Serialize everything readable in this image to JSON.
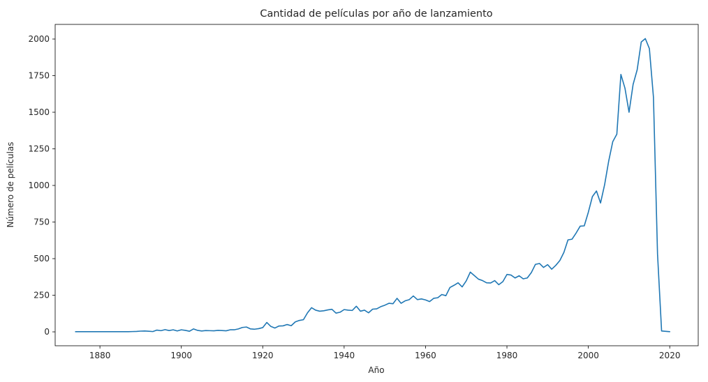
{
  "chart_data": {
    "type": "line",
    "title": "Cantidad de películas por año de lanzamiento",
    "xlabel": "Año",
    "ylabel": "Número de películas",
    "xlim": [
      1869,
      2027
    ],
    "ylim": [
      -95,
      2100
    ],
    "x_ticks": [
      1880,
      1900,
      1920,
      1940,
      1960,
      1980,
      2000,
      2020
    ],
    "y_ticks": [
      0,
      250,
      500,
      750,
      1000,
      1250,
      1500,
      1750,
      2000
    ],
    "grid": false,
    "series": [
      {
        "color": "#1f77b4",
        "points": [
          [
            1874,
            1
          ],
          [
            1878,
            1
          ],
          [
            1883,
            1
          ],
          [
            1887,
            1
          ],
          [
            1888,
            2
          ],
          [
            1889,
            3
          ],
          [
            1890,
            5
          ],
          [
            1891,
            6
          ],
          [
            1892,
            4
          ],
          [
            1893,
            2
          ],
          [
            1894,
            12
          ],
          [
            1895,
            8
          ],
          [
            1896,
            15
          ],
          [
            1897,
            9
          ],
          [
            1898,
            14
          ],
          [
            1899,
            6
          ],
          [
            1900,
            14
          ],
          [
            1901,
            10
          ],
          [
            1902,
            4
          ],
          [
            1903,
            20
          ],
          [
            1904,
            10
          ],
          [
            1905,
            6
          ],
          [
            1906,
            9
          ],
          [
            1907,
            8
          ],
          [
            1908,
            7
          ],
          [
            1909,
            10
          ],
          [
            1910,
            9
          ],
          [
            1911,
            7
          ],
          [
            1912,
            14
          ],
          [
            1913,
            14
          ],
          [
            1914,
            20
          ],
          [
            1915,
            30
          ],
          [
            1916,
            33
          ],
          [
            1917,
            20
          ],
          [
            1918,
            18
          ],
          [
            1919,
            22
          ],
          [
            1920,
            29
          ],
          [
            1921,
            64
          ],
          [
            1922,
            37
          ],
          [
            1923,
            26
          ],
          [
            1924,
            40
          ],
          [
            1925,
            41
          ],
          [
            1926,
            50
          ],
          [
            1927,
            42
          ],
          [
            1928,
            68
          ],
          [
            1929,
            78
          ],
          [
            1930,
            83
          ],
          [
            1931,
            130
          ],
          [
            1932,
            165
          ],
          [
            1933,
            148
          ],
          [
            1934,
            141
          ],
          [
            1935,
            144
          ],
          [
            1936,
            150
          ],
          [
            1937,
            154
          ],
          [
            1938,
            128
          ],
          [
            1939,
            134
          ],
          [
            1940,
            152
          ],
          [
            1941,
            148
          ],
          [
            1942,
            146
          ],
          [
            1943,
            175
          ],
          [
            1944,
            141
          ],
          [
            1945,
            148
          ],
          [
            1946,
            130
          ],
          [
            1947,
            155
          ],
          [
            1948,
            157
          ],
          [
            1949,
            172
          ],
          [
            1950,
            182
          ],
          [
            1951,
            195
          ],
          [
            1952,
            192
          ],
          [
            1953,
            229
          ],
          [
            1954,
            195
          ],
          [
            1955,
            212
          ],
          [
            1956,
            220
          ],
          [
            1957,
            245
          ],
          [
            1958,
            220
          ],
          [
            1959,
            225
          ],
          [
            1960,
            218
          ],
          [
            1961,
            207
          ],
          [
            1962,
            229
          ],
          [
            1963,
            233
          ],
          [
            1964,
            255
          ],
          [
            1965,
            247
          ],
          [
            1966,
            303
          ],
          [
            1967,
            318
          ],
          [
            1968,
            335
          ],
          [
            1969,
            307
          ],
          [
            1970,
            348
          ],
          [
            1971,
            408
          ],
          [
            1972,
            384
          ],
          [
            1973,
            360
          ],
          [
            1974,
            350
          ],
          [
            1975,
            335
          ],
          [
            1976,
            334
          ],
          [
            1977,
            350
          ],
          [
            1978,
            322
          ],
          [
            1979,
            343
          ],
          [
            1980,
            392
          ],
          [
            1981,
            388
          ],
          [
            1982,
            368
          ],
          [
            1983,
            383
          ],
          [
            1984,
            362
          ],
          [
            1985,
            368
          ],
          [
            1986,
            405
          ],
          [
            1987,
            461
          ],
          [
            1988,
            467
          ],
          [
            1989,
            440
          ],
          [
            1990,
            459
          ],
          [
            1991,
            428
          ],
          [
            1992,
            454
          ],
          [
            1993,
            487
          ],
          [
            1994,
            543
          ],
          [
            1995,
            628
          ],
          [
            1996,
            633
          ],
          [
            1997,
            675
          ],
          [
            1998,
            722
          ],
          [
            1999,
            724
          ],
          [
            2000,
            817
          ],
          [
            2001,
            924
          ],
          [
            2002,
            962
          ],
          [
            2003,
            880
          ],
          [
            2004,
            1005
          ],
          [
            2005,
            1166
          ],
          [
            2006,
            1299
          ],
          [
            2007,
            1350
          ],
          [
            2008,
            1758
          ],
          [
            2009,
            1664
          ],
          [
            2010,
            1500
          ],
          [
            2011,
            1690
          ],
          [
            2012,
            1790
          ],
          [
            2013,
            1980
          ],
          [
            2014,
            2003
          ],
          [
            2015,
            1935
          ],
          [
            2016,
            1602
          ],
          [
            2017,
            532
          ],
          [
            2018,
            6
          ],
          [
            2020,
            1
          ]
        ]
      }
    ]
  }
}
